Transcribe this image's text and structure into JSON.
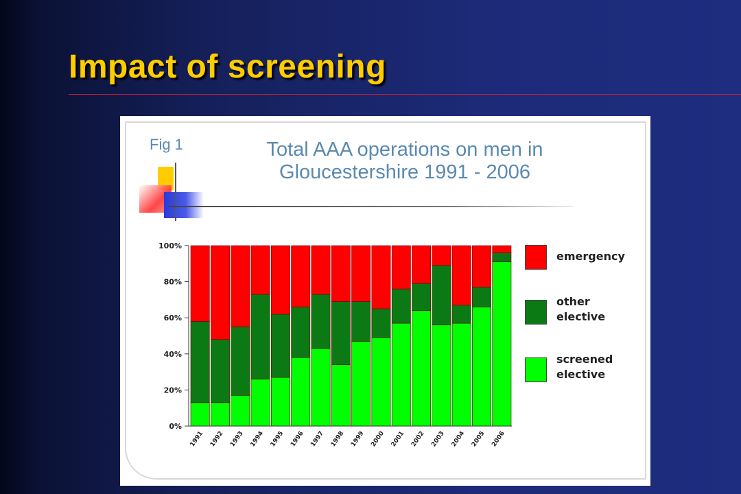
{
  "slide": {
    "title": "Impact of screening"
  },
  "figure": {
    "label": "Fig 1",
    "title_line1": "Total AAA operations on men in",
    "title_line2": "Gloucestershire 1991 - 2006"
  },
  "chart_data": {
    "type": "bar",
    "stacked": true,
    "title": "Total AAA operations on men in Gloucestershire 1991 - 2006",
    "categories": [
      "1991",
      "1992",
      "1993",
      "1994",
      "1995",
      "1996",
      "1997",
      "1998",
      "1999",
      "2000",
      "2001",
      "2002",
      "2003",
      "2004",
      "2005",
      "2006"
    ],
    "yticks": [
      "0%",
      "20%",
      "40%",
      "60%",
      "80%",
      "100%"
    ],
    "ylim": [
      0,
      100
    ],
    "grid": false,
    "legend_position": "right",
    "series": [
      {
        "name": "screened elective",
        "color": "#00ff00",
        "values": [
          13,
          13,
          17,
          26,
          27,
          38,
          43,
          34,
          47,
          49,
          57,
          64,
          56,
          57,
          66,
          91
        ]
      },
      {
        "name": "other elective",
        "color": "#0b7a14",
        "values": [
          45,
          35,
          38,
          47,
          35,
          28,
          30,
          35,
          22,
          16,
          19,
          15,
          33,
          10,
          11,
          5
        ]
      },
      {
        "name": "emergency",
        "color": "#ff0000",
        "values": [
          42,
          52,
          45,
          27,
          38,
          34,
          27,
          31,
          31,
          35,
          24,
          21,
          11,
          33,
          23,
          4
        ]
      }
    ],
    "legend": [
      {
        "label_line1": "emergency",
        "label_line2": "",
        "color": "#ff0000"
      },
      {
        "label_line1": "other",
        "label_line2": "elective",
        "color": "#0b7a14"
      },
      {
        "label_line1": "screened",
        "label_line2": "elective",
        "color": "#00ff00"
      }
    ]
  }
}
